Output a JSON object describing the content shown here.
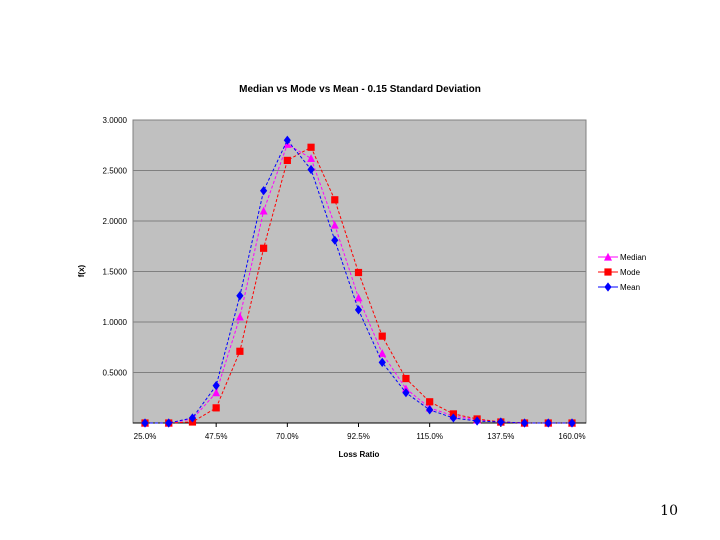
{
  "page": {
    "number": "10"
  },
  "chart_data": {
    "type": "line",
    "title": "Median vs Mode vs Mean - 0.15 Standard Deviation",
    "xlabel": "Loss Ratio",
    "ylabel": "f(x)",
    "ylim": [
      0,
      3.0
    ],
    "y_ticks": [
      0.5,
      1.0,
      1.5,
      2.0,
      2.5,
      3.0
    ],
    "y_tick_labels": [
      "0.5000",
      "1.0000",
      "1.5000",
      "2.0000",
      "2.5000",
      "3.0000"
    ],
    "x_ticks": [
      25.0,
      47.5,
      70.0,
      92.5,
      115.0,
      137.5,
      160.0
    ],
    "x_tick_labels": [
      "25.0%",
      "47.5%",
      "70.0%",
      "92.5%",
      "115.0%",
      "137.5%",
      "160.0%"
    ],
    "grid": "horizontal",
    "legend_position": "right",
    "x": [
      25,
      32.5,
      40,
      47.5,
      55,
      62.5,
      70,
      77.5,
      85,
      92.5,
      100,
      107.5,
      115,
      122.5,
      130,
      137.5,
      145,
      152.5,
      160
    ],
    "series": [
      {
        "name": "Median",
        "color": "#ff00ff",
        "marker": "triangle",
        "values": [
          0.0,
          0.0,
          0.04,
          0.3,
          1.05,
          2.1,
          2.76,
          2.62,
          1.96,
          1.24,
          0.69,
          0.34,
          0.15,
          0.07,
          0.03,
          0.01,
          0.0,
          0.0,
          0.0
        ]
      },
      {
        "name": "Mode",
        "color": "#ff0000",
        "marker": "square",
        "values": [
          0.0,
          0.0,
          0.01,
          0.15,
          0.71,
          1.73,
          2.6,
          2.73,
          2.21,
          1.49,
          0.86,
          0.44,
          0.21,
          0.09,
          0.04,
          0.01,
          0.0,
          0.0,
          0.0
        ]
      },
      {
        "name": "Mean",
        "color": "#0000ff",
        "marker": "diamond",
        "values": [
          0.0,
          0.0,
          0.05,
          0.37,
          1.26,
          2.3,
          2.8,
          2.51,
          1.81,
          1.12,
          0.6,
          0.3,
          0.13,
          0.05,
          0.02,
          0.01,
          0.0,
          0.0,
          0.0
        ]
      }
    ]
  }
}
